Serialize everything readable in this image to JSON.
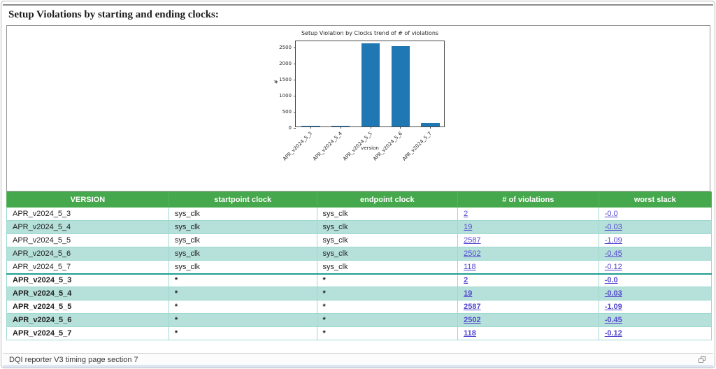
{
  "page": {
    "title": "Setup Violations by starting and ending clocks:",
    "status_text": "DQI reporter V3 timing page section 7"
  },
  "chart_data": {
    "type": "bar",
    "title": "Setup Violation by Clocks trend of # of violations",
    "xlabel": "version",
    "ylabel": "#",
    "categories": [
      "APR_v2024_5_3",
      "APR_v2024_5_4",
      "APR_v2024_5_5",
      "APR_v2024_5_6",
      "APR_v2024_5_7"
    ],
    "values": [
      2,
      19,
      2587,
      2502,
      118
    ],
    "yticks": [
      0,
      500,
      1000,
      1500,
      2000,
      2500
    ],
    "ylim": [
      0,
      2700
    ],
    "bar_color": "#1f77b4",
    "grid": false,
    "legend": null
  },
  "table": {
    "headers": [
      "VERSION",
      "startpoint clock",
      "endpoint clock",
      "# of violations",
      "worst slack"
    ],
    "header_bg": "#46a84c",
    "alt_row_bg": "#b6e0da",
    "link_color": "#5348d0",
    "groups": [
      {
        "bold": false,
        "rows": [
          {
            "version": "APR_v2024_5_3",
            "startpoint": "sys_clk",
            "endpoint": "sys_clk",
            "violations": "2",
            "worst_slack": "-0.0"
          },
          {
            "version": "APR_v2024_5_4",
            "startpoint": "sys_clk",
            "endpoint": "sys_clk",
            "violations": "19",
            "worst_slack": "-0.03"
          },
          {
            "version": "APR_v2024_5_5",
            "startpoint": "sys_clk",
            "endpoint": "sys_clk",
            "violations": "2587",
            "worst_slack": "-1.09"
          },
          {
            "version": "APR_v2024_5_6",
            "startpoint": "sys_clk",
            "endpoint": "sys_clk",
            "violations": "2502",
            "worst_slack": "-0.45"
          },
          {
            "version": "APR_v2024_5_7",
            "startpoint": "sys_clk",
            "endpoint": "sys_clk",
            "violations": "118",
            "worst_slack": "-0.12"
          }
        ]
      },
      {
        "bold": true,
        "rows": [
          {
            "version": "APR_v2024_5_3",
            "startpoint": "*",
            "endpoint": "*",
            "violations": "2",
            "worst_slack": "-0.0"
          },
          {
            "version": "APR_v2024_5_4",
            "startpoint": "*",
            "endpoint": "*",
            "violations": "19",
            "worst_slack": "-0.03"
          },
          {
            "version": "APR_v2024_5_5",
            "startpoint": "*",
            "endpoint": "*",
            "violations": "2587",
            "worst_slack": "-1.09"
          },
          {
            "version": "APR_v2024_5_6",
            "startpoint": "*",
            "endpoint": "*",
            "violations": "2502",
            "worst_slack": "-0.45"
          },
          {
            "version": "APR_v2024_5_7",
            "startpoint": "*",
            "endpoint": "*",
            "violations": "118",
            "worst_slack": "-0.12"
          }
        ]
      }
    ]
  }
}
